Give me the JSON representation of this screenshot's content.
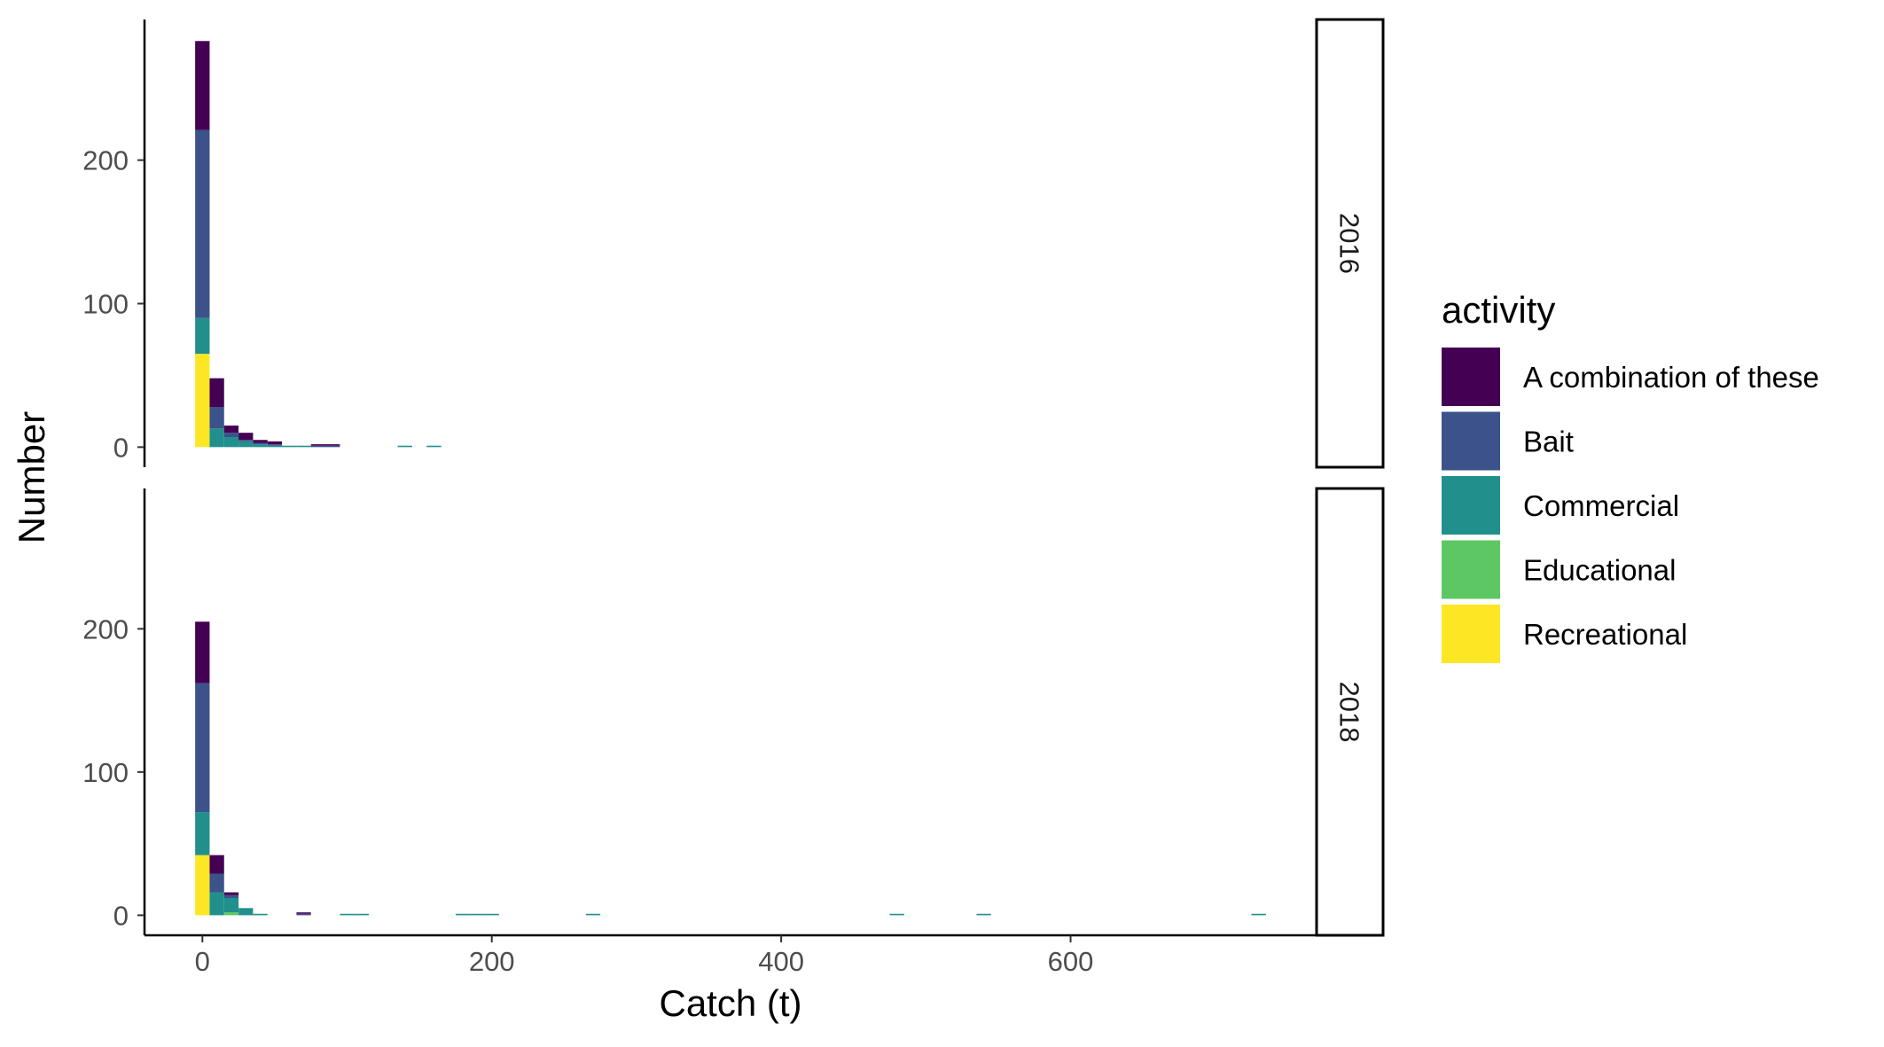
{
  "chart_data": {
    "type": "bar",
    "stacked": true,
    "histogram": true,
    "xlabel": "Catch (t)",
    "ylabel": "Number",
    "xlim": [
      -40,
      770
    ],
    "ylim": [
      -14,
      298
    ],
    "xticks": [
      0,
      200,
      400,
      600
    ],
    "yticks": [
      0,
      100,
      200
    ],
    "bin_width": 10,
    "legend": {
      "title": "activity",
      "position": "right",
      "entries": [
        "A combination of these",
        "Bait",
        "Commercial",
        "Educational",
        "Recreational"
      ]
    },
    "colors": {
      "A combination of these": "#440154",
      "Bait": "#3b528b",
      "Commercial": "#21908c",
      "Educational": "#5dc863",
      "Recreational": "#fde725"
    },
    "facets": [
      {
        "label": "2016",
        "bins": [
          {
            "x": 0,
            "counts": {
              "Recreational": 65,
              "Educational": 0,
              "Commercial": 25,
              "Bait": 131,
              "A combination of these": 62
            }
          },
          {
            "x": 10,
            "counts": {
              "Recreational": 0,
              "Educational": 0,
              "Commercial": 13,
              "Bait": 15,
              "A combination of these": 20
            }
          },
          {
            "x": 20,
            "counts": {
              "Recreational": 0,
              "Educational": 0,
              "Commercial": 7,
              "Bait": 3,
              "A combination of these": 5
            }
          },
          {
            "x": 30,
            "counts": {
              "Recreational": 0,
              "Educational": 0,
              "Commercial": 4,
              "Bait": 1,
              "A combination of these": 5
            }
          },
          {
            "x": 40,
            "counts": {
              "Recreational": 0,
              "Educational": 0,
              "Commercial": 2,
              "Bait": 1,
              "A combination of these": 2
            }
          },
          {
            "x": 50,
            "counts": {
              "Recreational": 0,
              "Educational": 0,
              "Commercial": 1,
              "Bait": 1,
              "A combination of these": 2
            }
          },
          {
            "x": 60,
            "counts": {
              "Recreational": 0,
              "Educational": 0,
              "Commercial": 1,
              "Bait": 0,
              "A combination of these": 0
            }
          },
          {
            "x": 70,
            "counts": {
              "Recreational": 0,
              "Educational": 0,
              "Commercial": 1,
              "Bait": 0,
              "A combination of these": 0
            }
          },
          {
            "x": 80,
            "counts": {
              "Recreational": 0,
              "Educational": 0,
              "Commercial": 0,
              "Bait": 1,
              "A combination of these": 1
            }
          },
          {
            "x": 90,
            "counts": {
              "Recreational": 0,
              "Educational": 0,
              "Commercial": 0,
              "Bait": 1,
              "A combination of these": 1
            }
          },
          {
            "x": 140,
            "counts": {
              "Recreational": 0,
              "Educational": 0,
              "Commercial": 1,
              "Bait": 0,
              "A combination of these": 0
            }
          },
          {
            "x": 160,
            "counts": {
              "Recreational": 0,
              "Educational": 0,
              "Commercial": 1,
              "Bait": 0,
              "A combination of these": 0
            }
          }
        ]
      },
      {
        "label": "2018",
        "bins": [
          {
            "x": 0,
            "counts": {
              "Recreational": 42,
              "Educational": 0,
              "Commercial": 30,
              "Bait": 90,
              "A combination of these": 43
            }
          },
          {
            "x": 10,
            "counts": {
              "Recreational": 0,
              "Educational": 0,
              "Commercial": 16,
              "Bait": 13,
              "A combination of these": 13
            }
          },
          {
            "x": 20,
            "counts": {
              "Recreational": 0,
              "Educational": 2,
              "Commercial": 10,
              "Bait": 2,
              "A combination of these": 2
            }
          },
          {
            "x": 30,
            "counts": {
              "Recreational": 0,
              "Educational": 0,
              "Commercial": 5,
              "Bait": 0,
              "A combination of these": 0
            }
          },
          {
            "x": 40,
            "counts": {
              "Recreational": 0,
              "Educational": 0,
              "Commercial": 1,
              "Bait": 0,
              "A combination of these": 0
            }
          },
          {
            "x": 70,
            "counts": {
              "Recreational": 0,
              "Educational": 0,
              "Commercial": 0,
              "Bait": 1,
              "A combination of these": 1
            }
          },
          {
            "x": 100,
            "counts": {
              "Recreational": 0,
              "Educational": 0,
              "Commercial": 1,
              "Bait": 0,
              "A combination of these": 0
            }
          },
          {
            "x": 110,
            "counts": {
              "Recreational": 0,
              "Educational": 0,
              "Commercial": 1,
              "Bait": 0,
              "A combination of these": 0
            }
          },
          {
            "x": 180,
            "counts": {
              "Recreational": 0,
              "Educational": 0,
              "Commercial": 1,
              "Bait": 0,
              "A combination of these": 0
            }
          },
          {
            "x": 190,
            "counts": {
              "Recreational": 0,
              "Educational": 0,
              "Commercial": 1,
              "Bait": 0,
              "A combination of these": 0
            }
          },
          {
            "x": 200,
            "counts": {
              "Recreational": 0,
              "Educational": 0,
              "Commercial": 1,
              "Bait": 0,
              "A combination of these": 0
            }
          },
          {
            "x": 270,
            "counts": {
              "Recreational": 0,
              "Educational": 0,
              "Commercial": 1,
              "Bait": 0,
              "A combination of these": 0
            }
          },
          {
            "x": 480,
            "counts": {
              "Recreational": 0,
              "Educational": 0,
              "Commercial": 1,
              "Bait": 0,
              "A combination of these": 0
            }
          },
          {
            "x": 540,
            "counts": {
              "Recreational": 0,
              "Educational": 0,
              "Commercial": 1,
              "Bait": 0,
              "A combination of these": 0
            }
          },
          {
            "x": 730,
            "counts": {
              "Recreational": 0,
              "Educational": 0,
              "Commercial": 1,
              "Bait": 0,
              "A combination of these": 0
            }
          }
        ]
      }
    ]
  }
}
